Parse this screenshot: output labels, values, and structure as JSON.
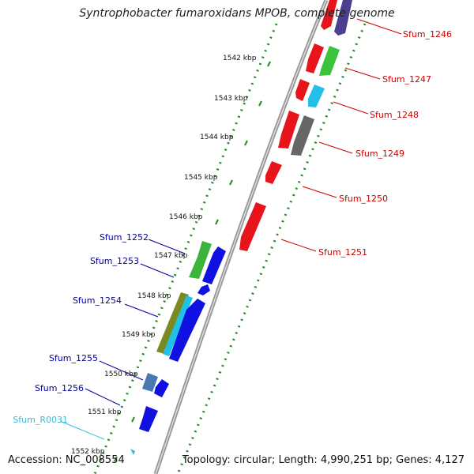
{
  "title": "Syntrophobacter fumaroxidans MPOB, complete genome",
  "accession_text": "Accession: NC_008554",
  "summary_text": "Topology: circular; Length: 4,990,251 bp; Genes: 4,127",
  "colors": {
    "forward_label": "#cc0000",
    "reverse_label": "#000099",
    "rna_label": "#33bbdd",
    "backbone": "#888888",
    "tick_dots": "#228B22"
  },
  "ticks": [
    {
      "label": "1542 kbp"
    },
    {
      "label": "1543 kbp"
    },
    {
      "label": "1544 kbp"
    },
    {
      "label": "1545 kbp"
    },
    {
      "label": "1546 kbp"
    },
    {
      "label": "1547 kbp"
    },
    {
      "label": "1548 kbp"
    },
    {
      "label": "1549 kbp"
    },
    {
      "label": "1550 kbp"
    },
    {
      "label": "1551 kbp"
    },
    {
      "label": "1552 kbp"
    }
  ],
  "forward_genes": [
    {
      "label": "Sfum_1246"
    },
    {
      "label": "Sfum_1247"
    },
    {
      "label": "Sfum_1248"
    },
    {
      "label": "Sfum_1249"
    },
    {
      "label": "Sfum_1250"
    },
    {
      "label": "Sfum_1251"
    }
  ],
  "reverse_genes": [
    {
      "label": "Sfum_1252"
    },
    {
      "label": "Sfum_1253"
    },
    {
      "label": "Sfum_1254"
    },
    {
      "label": "Sfum_1255"
    },
    {
      "label": "Sfum_1256"
    },
    {
      "label": "Sfum_R0031"
    }
  ]
}
